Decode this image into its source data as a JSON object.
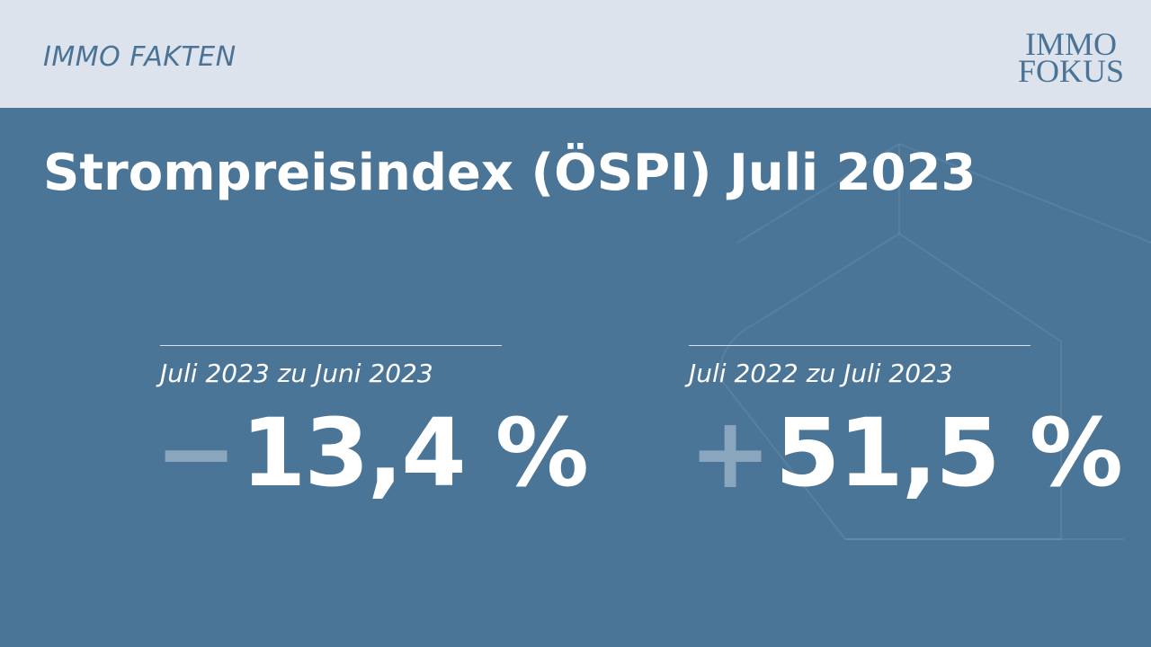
{
  "header": {
    "label": "IMMO FAKTEN",
    "logo": [
      "IMMO",
      "FOKUS"
    ]
  },
  "title": "Strompreisindex (ÖSPI) Juli 2023",
  "stats": [
    {
      "label": "Juli 2023 zu Juni 2023",
      "sign": "−",
      "value": "13,4 %"
    },
    {
      "label": "Juli 2022 zu Juli 2023",
      "sign": "+",
      "value": "51,5 %"
    }
  ]
}
